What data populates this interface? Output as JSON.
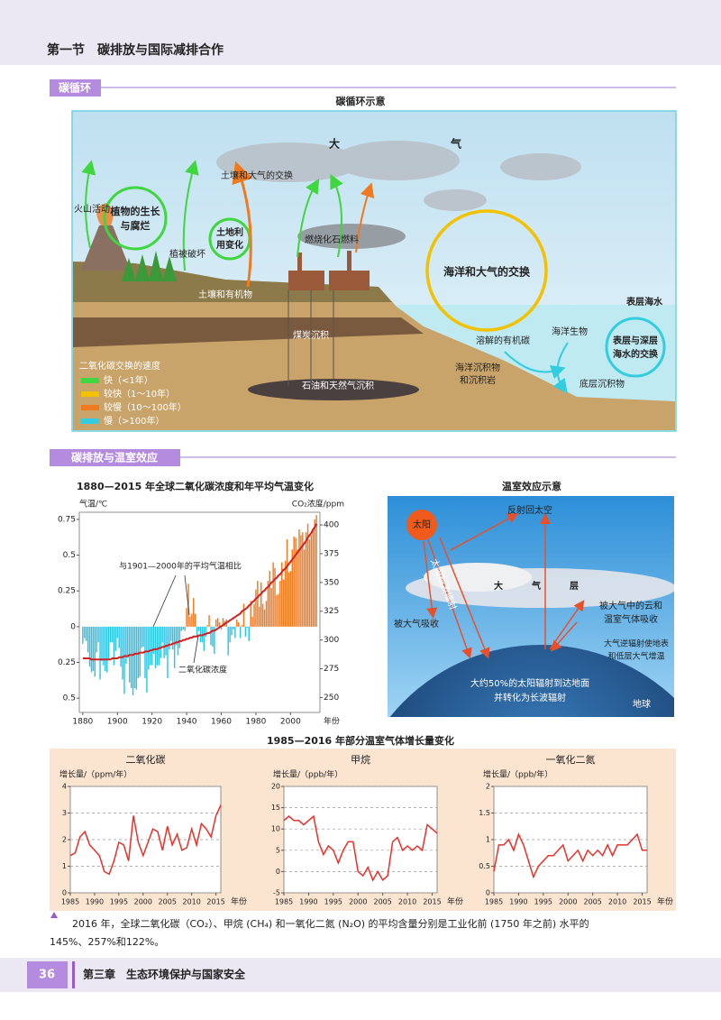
{
  "header": {
    "title": "第一节　碳排放与国际减排合作"
  },
  "sections": [
    {
      "title": "碳循环"
    },
    {
      "title": "碳排放与温室效应"
    }
  ],
  "carbon_cycle": {
    "title": "碳循环示意",
    "labels": [
      "大",
      "气",
      "土壤和大气的交换",
      "火山活动",
      "植物的生长",
      "与腐烂",
      "土地利",
      "用变化",
      "燃烧化石燃料",
      "植被破坏",
      "土壤和有机物",
      "海洋和大气的交换",
      "表层海水",
      "海洋生物",
      "溶解的有机碳",
      "表层与深层",
      "海水的交换",
      "煤炭沉积",
      "海洋沉积物",
      "和沉积岩",
      "底层沉积物",
      "石油和天然气沉积"
    ],
    "legend": {
      "title": "二氧化碳交换的速度",
      "items": [
        {
          "label": "快（<1年）",
          "color": "#3fd63f"
        },
        {
          "label": "较快（1～10年）",
          "color": "#f2c200"
        },
        {
          "label": "较慢（10～100年）",
          "color": "#f07a20"
        },
        {
          "label": "慢（>100年）",
          "color": "#33cce0"
        }
      ]
    }
  },
  "greenhouse": {
    "title": "温室效应示意",
    "labels": [
      "太阳",
      "反射回太空",
      "太阳短波辐射",
      "大",
      "气",
      "层",
      "被大气吸收",
      "被大气中的云和",
      "温室气体吸收",
      "大气逆辐射使地表",
      "和低层大气增温",
      "大约50%的太阳辐射到达地面",
      "并转化为长波辐射",
      "地球"
    ]
  },
  "growth_title": "1985—2016 年部分温室气体增长量变化",
  "caption": [
    "2016 年，全球二氧化碳（CO₂）、甲烷 (CH₄) 和一氧化二氮 (N₂O) 的平均含量分别是工业化前 (1750 年之前) 水平的",
    "145%、257%和122%。"
  ],
  "footer": {
    "page": "36",
    "chapter": "第三章　生态环境保护与国家安全"
  },
  "chart_data": [
    {
      "type": "bar",
      "title": "1880—2015 年全球二氧化碳浓度和年平均气温变化",
      "y_label": "气温/℃",
      "y2_label": "CO₂浓度/ppm",
      "x_label": "年份",
      "annotations": [
        "与1901—2000年的平均气温相比",
        "二氧化碳浓度"
      ],
      "xlim": [
        1878,
        2017
      ],
      "xticks": [
        1880,
        1900,
        1920,
        1940,
        1960,
        1980,
        2000
      ],
      "ylim": [
        -0.6,
        0.8
      ],
      "yticks": [
        {
          "value": -0.5,
          "label": "0.5"
        },
        {
          "value": -0.25,
          "label": "0.25"
        },
        0,
        0.25,
        0.5,
        0.75
      ],
      "y2lim": [
        237,
        411
      ],
      "y2ticks": [
        250,
        275,
        300,
        325,
        350,
        375,
        400
      ],
      "grid": false,
      "x": [
        1880,
        1881,
        1882,
        1883,
        1884,
        1885,
        1886,
        1887,
        1888,
        1889,
        1890,
        1891,
        1892,
        1893,
        1894,
        1895,
        1896,
        1897,
        1898,
        1899,
        1900,
        1901,
        1902,
        1903,
        1904,
        1905,
        1906,
        1907,
        1908,
        1909,
        1910,
        1911,
        1912,
        1913,
        1914,
        1915,
        1916,
        1917,
        1918,
        1919,
        1920,
        1921,
        1922,
        1923,
        1924,
        1925,
        1926,
        1927,
        1928,
        1929,
        1930,
        1931,
        1932,
        1933,
        1934,
        1935,
        1936,
        1937,
        1938,
        1939,
        1940,
        1941,
        1942,
        1943,
        1944,
        1945,
        1946,
        1947,
        1948,
        1949,
        1950,
        1951,
        1952,
        1953,
        1954,
        1955,
        1956,
        1957,
        1958,
        1959,
        1960,
        1961,
        1962,
        1963,
        1964,
        1965,
        1966,
        1967,
        1968,
        1969,
        1970,
        1971,
        1972,
        1973,
        1974,
        1975,
        1976,
        1977,
        1978,
        1979,
        1980,
        1981,
        1982,
        1983,
        1984,
        1985,
        1986,
        1987,
        1988,
        1989,
        1990,
        1991,
        1992,
        1993,
        1994,
        1995,
        1996,
        1997,
        1998,
        1999,
        2000,
        2001,
        2002,
        2003,
        2004,
        2005,
        2006,
        2007,
        2008,
        2009,
        2010,
        2011,
        2012,
        2013,
        2014,
        2015
      ],
      "series": [
        {
          "type": "bar",
          "color": "#f07a20",
          "negative_color": "#2ec4e6",
          "values": [
            -0.12,
            -0.08,
            -0.1,
            -0.18,
            -0.28,
            -0.32,
            -0.31,
            -0.35,
            -0.18,
            -0.11,
            -0.37,
            -0.24,
            -0.27,
            -0.31,
            -0.32,
            -0.23,
            -0.11,
            -0.11,
            -0.27,
            -0.17,
            -0.08,
            -0.15,
            -0.28,
            -0.37,
            -0.47,
            -0.26,
            -0.22,
            -0.39,
            -0.43,
            -0.48,
            -0.43,
            -0.44,
            -0.36,
            -0.35,
            -0.15,
            -0.14,
            -0.36,
            -0.46,
            -0.3,
            -0.27,
            -0.27,
            -0.19,
            -0.29,
            -0.27,
            -0.27,
            -0.22,
            -0.11,
            -0.22,
            -0.2,
            -0.36,
            -0.16,
            -0.1,
            -0.16,
            -0.29,
            -0.13,
            -0.2,
            -0.15,
            -0.03,
            -0.02,
            -0.03,
            0.13,
            0.3,
            0.07,
            0.09,
            0.2,
            0.09,
            -0.07,
            -0.03,
            -0.11,
            -0.11,
            -0.17,
            -0.07,
            0.01,
            0.08,
            -0.13,
            -0.14,
            -0.19,
            0.05,
            0.06,
            0.03,
            -0.02,
            0.06,
            0.04,
            0.05,
            -0.2,
            -0.11,
            -0.06,
            -0.02,
            -0.08,
            0.05,
            0.03,
            -0.08,
            0.01,
            0.16,
            -0.07,
            -0.01,
            -0.1,
            0.18,
            0.07,
            0.16,
            0.26,
            0.32,
            0.14,
            0.31,
            0.16,
            0.12,
            0.18,
            0.32,
            0.39,
            0.27,
            0.45,
            0.41,
            0.22,
            0.23,
            0.32,
            0.45,
            0.33,
            0.46,
            0.61,
            0.38,
            0.39,
            0.54,
            0.63,
            0.62,
            0.54,
            0.68,
            0.64,
            0.66,
            0.54,
            0.66,
            0.72,
            0.61,
            0.64,
            0.68,
            0.75,
            0.78
          ]
        },
        {
          "type": "line",
          "axis": "y2",
          "color": "#d42020",
          "values": [
            284,
            284,
            284,
            284,
            284,
            283,
            283,
            283,
            283,
            283,
            283,
            283,
            283,
            283,
            283,
            283,
            283,
            284,
            284,
            284,
            284,
            285,
            285,
            285,
            286,
            286,
            286,
            287,
            287,
            287,
            288,
            288,
            288,
            289,
            289,
            289,
            290,
            290,
            290,
            291,
            291,
            292,
            292,
            292,
            293,
            293,
            294,
            294,
            295,
            295,
            296,
            296,
            297,
            297,
            298,
            298,
            299,
            299,
            300,
            300,
            301,
            301,
            302,
            302,
            303,
            303,
            303,
            304,
            304,
            304,
            305,
            305,
            306,
            306,
            307,
            308,
            308,
            309,
            310,
            311,
            312,
            313,
            314,
            315,
            316,
            317,
            318,
            319,
            320,
            321,
            322,
            323,
            325,
            326,
            327,
            328,
            330,
            331,
            333,
            334,
            336,
            337,
            339,
            340,
            342,
            343,
            345,
            346,
            348,
            350,
            351,
            353,
            354,
            356,
            357,
            359,
            361,
            362,
            364,
            366,
            368,
            370,
            372,
            374,
            376,
            378,
            380,
            382,
            384,
            386,
            389,
            391,
            393,
            396,
            398,
            401
          ]
        }
      ]
    },
    {
      "type": "line",
      "title": "二氧化碳",
      "y_label": "增长量/（ppm/年）",
      "x_label": "年份",
      "xlim": [
        1985,
        2016
      ],
      "xticks": [
        1985,
        1990,
        1995,
        2000,
        2005,
        2010,
        2015
      ],
      "ylim": [
        0,
        4
      ],
      "yticks": [
        0,
        1,
        2,
        3,
        4
      ],
      "grid": true,
      "x": [
        1985,
        1986,
        1987,
        1988,
        1989,
        1990,
        1991,
        1992,
        1993,
        1994,
        1995,
        1996,
        1997,
        1998,
        1999,
        2000,
        2001,
        2002,
        2003,
        2004,
        2005,
        2006,
        2007,
        2008,
        2009,
        2010,
        2011,
        2012,
        2013,
        2014,
        2015,
        2016
      ],
      "series": [
        {
          "type": "line",
          "color": "#e8302a",
          "values": [
            1.4,
            1.5,
            2.1,
            2.3,
            1.8,
            1.6,
            1.4,
            0.8,
            0.7,
            1.2,
            1.9,
            1.8,
            1.2,
            2.9,
            1.9,
            1.4,
            1.9,
            2.4,
            2.3,
            1.6,
            2.5,
            1.8,
            2.2,
            1.6,
            1.7,
            2.4,
            1.8,
            2.6,
            2.4,
            2.1,
            2.9,
            3.3
          ]
        }
      ]
    },
    {
      "type": "line",
      "title": "甲烷",
      "y_label": "增长量/（ppb/年）",
      "x_label": "年份",
      "xlim": [
        1985,
        2016
      ],
      "xticks": [
        1985,
        1990,
        1995,
        2000,
        2005,
        2010,
        2015
      ],
      "ylim": [
        -5,
        20
      ],
      "yticks": [
        -5,
        0,
        5,
        10,
        15,
        20
      ],
      "grid": true,
      "x": [
        1985,
        1986,
        1987,
        1988,
        1989,
        1990,
        1991,
        1992,
        1993,
        1994,
        1995,
        1996,
        1997,
        1998,
        1999,
        2000,
        2001,
        2002,
        2003,
        2004,
        2005,
        2006,
        2007,
        2008,
        2009,
        2010,
        2011,
        2012,
        2013,
        2014,
        2015,
        2016
      ],
      "series": [
        {
          "type": "line",
          "color": "#e8302a",
          "values": [
            12,
            13,
            12,
            12,
            11,
            12,
            13,
            7,
            4,
            6,
            5,
            2,
            5,
            7,
            7,
            0,
            -1,
            1,
            -2,
            0,
            -2,
            -1,
            7,
            8,
            5,
            6,
            5,
            6,
            5,
            11,
            10,
            9
          ]
        }
      ]
    },
    {
      "type": "line",
      "title": "一氧化二氮",
      "y_label": "增长量/（ppb/年）",
      "x_label": "年份",
      "xlim": [
        1985,
        2016
      ],
      "xticks": [
        1985,
        1990,
        1995,
        2000,
        2005,
        2010,
        2015
      ],
      "ylim": [
        0,
        2
      ],
      "yticks": [
        0,
        0.5,
        1,
        1.5,
        2
      ],
      "grid": true,
      "x": [
        1985,
        1986,
        1987,
        1988,
        1989,
        1990,
        1991,
        1992,
        1993,
        1994,
        1995,
        1996,
        1997,
        1998,
        1999,
        2000,
        2001,
        2002,
        2003,
        2004,
        2005,
        2006,
        2007,
        2008,
        2009,
        2010,
        2011,
        2012,
        2013,
        2014,
        2015,
        2016
      ],
      "series": [
        {
          "type": "line",
          "color": "#e8302a",
          "values": [
            0.4,
            0.9,
            0.9,
            1.0,
            0.8,
            1.1,
            0.9,
            0.6,
            0.3,
            0.5,
            0.6,
            0.7,
            0.7,
            0.8,
            0.9,
            0.6,
            0.7,
            0.8,
            0.6,
            0.8,
            0.7,
            0.8,
            0.7,
            0.9,
            0.7,
            0.9,
            0.9,
            0.9,
            1.0,
            1.1,
            0.8,
            0.8
          ]
        }
      ]
    }
  ]
}
